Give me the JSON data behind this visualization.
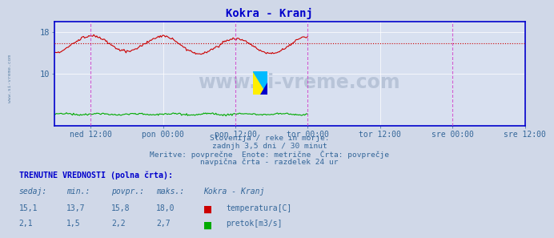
{
  "title": "Kokra - Kranj",
  "title_color": "#0000cc",
  "bg_color": "#d0d8e8",
  "plot_bg_color": "#d8e0f0",
  "grid_color": "#ffffff",
  "ylim": [
    0,
    20
  ],
  "yticks": [
    10,
    18
  ],
  "ytick_labels": [
    "10",
    "18"
  ],
  "avg_line_y": 15.8,
  "avg_line_color": "#cc0000",
  "temp_color": "#cc0000",
  "flow_color": "#00aa00",
  "vline_color": "#cc44cc",
  "axis_color": "#0000cc",
  "tick_label_color": "#336699",
  "n_points": 252,
  "duration_hours": 84,
  "xtick_positions": [
    12,
    36,
    60,
    84,
    108,
    132,
    156
  ],
  "xtick_labels": [
    "ned 12:00",
    "pon 00:00",
    "pon 12:00",
    "tor 00:00",
    "tor 12:00",
    "sre 00:00",
    "sre 12:00"
  ],
  "vline_positions": [
    12,
    60,
    84,
    132,
    156
  ],
  "temp_min": 13.7,
  "temp_max": 18.0,
  "temp_avg": 15.8,
  "flow_min": 1.5,
  "flow_max": 2.7,
  "flow_avg": 2.2,
  "text1": "Slovenija / reke in morje.",
  "text2": "zadnjh 3,5 dni / 30 minut",
  "text3": "Meritve: povprečne  Enote: metrične  Črta: povprečje",
  "text4": "navpična črta - razdelek 24 ur",
  "text_color": "#336699",
  "table_header": "TRENUTNE VREDNOSTI (polna črta):",
  "col1_label": "sedaj:",
  "col2_label": "min.:",
  "col3_label": "povpr.:",
  "col4_label": "maks.:",
  "col5_label": "Kokra - Kranj",
  "row1_vals": [
    "15,1",
    "13,7",
    "15,8",
    "18,0"
  ],
  "row1_label": "temperatura[C]",
  "row1_color": "#cc0000",
  "row2_vals": [
    "2,1",
    "1,5",
    "2,2",
    "2,7"
  ],
  "row2_label": "pretok[m3/s]",
  "row2_color": "#00aa00",
  "watermark": "www.si-vreme.com",
  "watermark_color": "#b8c4d8",
  "left_text": "www.si-vreme.com",
  "left_text_color": "#6688aa"
}
